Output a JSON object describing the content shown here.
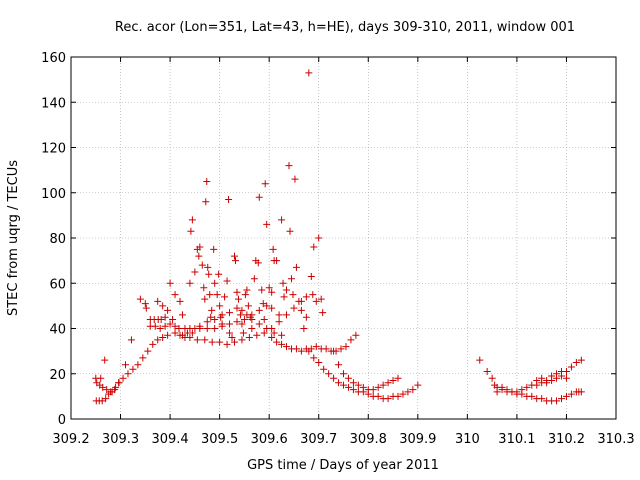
{
  "chart_data": {
    "type": "scatter",
    "title": "Rec. acor (Lon=351, Lat=43, h=HE), days 309-310, 2011, window 001",
    "xlabel": "GPS time / Days of year 2011",
    "ylabel": "STEC from uqrg / TECUs",
    "xlim": [
      309.2,
      310.3
    ],
    "ylim": [
      0,
      160
    ],
    "xticks": [
      309.2,
      309.3,
      309.4,
      309.5,
      309.6,
      309.7,
      309.8,
      309.9,
      310,
      310.1,
      310.2,
      310.3
    ],
    "xtick_labels": [
      "309.2",
      "309.3",
      "309.4",
      "309.5",
      "309.6",
      "309.7",
      "309.8",
      "309.9",
      "310",
      "310.1",
      "310.2",
      "310.3"
    ],
    "yticks": [
      0,
      20,
      40,
      60,
      80,
      100,
      120,
      140,
      160
    ],
    "ytick_labels": [
      "0",
      "20",
      "40",
      "60",
      "80",
      "100",
      "120",
      "140",
      "160"
    ],
    "grid": true,
    "marker": "+",
    "color": "#cc0000",
    "points": [
      [
        309.251,
        8
      ],
      [
        309.257,
        8
      ],
      [
        309.263,
        8
      ],
      [
        309.27,
        9
      ],
      [
        309.276,
        11
      ],
      [
        309.283,
        12
      ],
      [
        309.29,
        14
      ],
      [
        309.297,
        16
      ],
      [
        309.305,
        18
      ],
      [
        309.315,
        20
      ],
      [
        309.325,
        22
      ],
      [
        309.335,
        24
      ],
      [
        309.345,
        27
      ],
      [
        309.355,
        30
      ],
      [
        309.365,
        33
      ],
      [
        309.375,
        35
      ],
      [
        309.385,
        36
      ],
      [
        309.395,
        37
      ],
      [
        309.41,
        38
      ],
      [
        309.425,
        37
      ],
      [
        309.44,
        36
      ],
      [
        309.455,
        35
      ],
      [
        309.47,
        35
      ],
      [
        309.485,
        34
      ],
      [
        309.5,
        34
      ],
      [
        309.515,
        33
      ],
      [
        309.53,
        34
      ],
      [
        309.545,
        35
      ],
      [
        309.56,
        36
      ],
      [
        309.575,
        37
      ],
      [
        309.59,
        38
      ],
      [
        309.605,
        40
      ],
      [
        309.62,
        43
      ],
      [
        309.635,
        46
      ],
      [
        309.65,
        49
      ],
      [
        309.665,
        52
      ],
      [
        309.675,
        54
      ],
      [
        309.252,
        16
      ],
      [
        309.258,
        15
      ],
      [
        309.264,
        14
      ],
      [
        309.272,
        13
      ],
      [
        309.28,
        12
      ],
      [
        309.288,
        13
      ],
      [
        309.296,
        16
      ],
      [
        309.25,
        18
      ],
      [
        309.26,
        18
      ],
      [
        309.268,
        26
      ],
      [
        309.31,
        24
      ],
      [
        309.322,
        35
      ],
      [
        309.34,
        53
      ],
      [
        309.35,
        51
      ],
      [
        309.352,
        49
      ],
      [
        309.36,
        44
      ],
      [
        309.368,
        44
      ],
      [
        309.376,
        44
      ],
      [
        309.382,
        44
      ],
      [
        309.39,
        45
      ],
      [
        309.36,
        41
      ],
      [
        309.37,
        41
      ],
      [
        309.38,
        40
      ],
      [
        309.39,
        41
      ],
      [
        309.4,
        42
      ],
      [
        309.405,
        44
      ],
      [
        309.41,
        41
      ],
      [
        309.418,
        40
      ],
      [
        309.43,
        40
      ],
      [
        309.44,
        40
      ],
      [
        309.45,
        40
      ],
      [
        309.46,
        40
      ],
      [
        309.475,
        40
      ],
      [
        309.49,
        40
      ],
      [
        309.505,
        41
      ],
      [
        309.52,
        42
      ],
      [
        309.535,
        43
      ],
      [
        309.55,
        44
      ],
      [
        309.565,
        46
      ],
      [
        309.58,
        48
      ],
      [
        309.595,
        50
      ],
      [
        309.605,
        49
      ],
      [
        309.375,
        52
      ],
      [
        309.385,
        50
      ],
      [
        309.395,
        48
      ],
      [
        309.4,
        60
      ],
      [
        309.41,
        55
      ],
      [
        309.42,
        52
      ],
      [
        309.425,
        46
      ],
      [
        309.435,
        38
      ],
      [
        309.44,
        60
      ],
      [
        309.45,
        65
      ],
      [
        309.442,
        83
      ],
      [
        309.445,
        88
      ],
      [
        309.455,
        75
      ],
      [
        309.458,
        72
      ],
      [
        309.46,
        76
      ],
      [
        309.465,
        68
      ],
      [
        309.468,
        58
      ],
      [
        309.47,
        53
      ],
      [
        309.472,
        96
      ],
      [
        309.474,
        105
      ],
      [
        309.476,
        67
      ],
      [
        309.478,
        64
      ],
      [
        309.48,
        55
      ],
      [
        309.482,
        45
      ],
      [
        309.484,
        48
      ],
      [
        309.488,
        75
      ],
      [
        309.49,
        60
      ],
      [
        309.495,
        55
      ],
      [
        309.498,
        64
      ],
      [
        309.5,
        50
      ],
      [
        309.502,
        45
      ],
      [
        309.505,
        42
      ],
      [
        309.51,
        54
      ],
      [
        309.515,
        61
      ],
      [
        309.518,
        97
      ],
      [
        309.52,
        38
      ],
      [
        309.525,
        36
      ],
      [
        309.53,
        72
      ],
      [
        309.532,
        70
      ],
      [
        309.535,
        56
      ],
      [
        309.538,
        53
      ],
      [
        309.542,
        46
      ],
      [
        309.545,
        42
      ],
      [
        309.548,
        38
      ],
      [
        309.552,
        55
      ],
      [
        309.555,
        57
      ],
      [
        309.558,
        50
      ],
      [
        309.562,
        45
      ],
      [
        309.565,
        40
      ],
      [
        309.57,
        62
      ],
      [
        309.573,
        70
      ],
      [
        309.578,
        69
      ],
      [
        309.58,
        98
      ],
      [
        309.585,
        57
      ],
      [
        309.588,
        51
      ],
      [
        309.59,
        44
      ],
      [
        309.592,
        104
      ],
      [
        309.595,
        86
      ],
      [
        309.6,
        58
      ],
      [
        309.605,
        56
      ],
      [
        309.608,
        75
      ],
      [
        309.61,
        70
      ],
      [
        309.615,
        70
      ],
      [
        309.62,
        46
      ],
      [
        309.625,
        88
      ],
      [
        309.628,
        60
      ],
      [
        309.63,
        54
      ],
      [
        309.635,
        57
      ],
      [
        309.64,
        112
      ],
      [
        309.642,
        83
      ],
      [
        309.645,
        62
      ],
      [
        309.648,
        55
      ],
      [
        309.652,
        106
      ],
      [
        309.655,
        67
      ],
      [
        309.66,
        52
      ],
      [
        309.665,
        48
      ],
      [
        309.67,
        40
      ],
      [
        309.675,
        45
      ],
      [
        309.68,
        153
      ],
      [
        309.685,
        63
      ],
      [
        309.688,
        55
      ],
      [
        309.69,
        76
      ],
      [
        309.695,
        52
      ],
      [
        309.7,
        80
      ],
      [
        309.705,
        53
      ],
      [
        309.708,
        47
      ],
      [
        309.42,
        37
      ],
      [
        309.43,
        36
      ],
      [
        309.445,
        38
      ],
      [
        309.46,
        41
      ],
      [
        309.475,
        43
      ],
      [
        309.49,
        44
      ],
      [
        309.505,
        46
      ],
      [
        309.52,
        47
      ],
      [
        309.535,
        49
      ],
      [
        309.545,
        48
      ],
      [
        309.555,
        46
      ],
      [
        309.565,
        44
      ],
      [
        309.58,
        42
      ],
      [
        309.595,
        40
      ],
      [
        309.61,
        38
      ],
      [
        309.625,
        37
      ],
      [
        309.605,
        36
      ],
      [
        309.615,
        34
      ],
      [
        309.625,
        33
      ],
      [
        309.635,
        32
      ],
      [
        309.645,
        31
      ],
      [
        309.655,
        31
      ],
      [
        309.665,
        30
      ],
      [
        309.675,
        31
      ],
      [
        309.685,
        31
      ],
      [
        309.695,
        32
      ],
      [
        309.705,
        31
      ],
      [
        309.715,
        31
      ],
      [
        309.725,
        30
      ],
      [
        309.735,
        30
      ],
      [
        309.745,
        31
      ],
      [
        309.755,
        32
      ],
      [
        309.765,
        35
      ],
      [
        309.775,
        37
      ],
      [
        309.68,
        30
      ],
      [
        309.69,
        27
      ],
      [
        309.7,
        25
      ],
      [
        309.71,
        22
      ],
      [
        309.72,
        20
      ],
      [
        309.73,
        18
      ],
      [
        309.74,
        16
      ],
      [
        309.75,
        15
      ],
      [
        309.76,
        14
      ],
      [
        309.77,
        13
      ],
      [
        309.78,
        12
      ],
      [
        309.79,
        12
      ],
      [
        309.8,
        11
      ],
      [
        309.81,
        10
      ],
      [
        309.82,
        10
      ],
      [
        309.83,
        9
      ],
      [
        309.84,
        9
      ],
      [
        309.85,
        10
      ],
      [
        309.86,
        10
      ],
      [
        309.87,
        11
      ],
      [
        309.88,
        12
      ],
      [
        309.89,
        13
      ],
      [
        309.9,
        15
      ],
      [
        309.73,
        30
      ],
      [
        309.74,
        24
      ],
      [
        309.75,
        20
      ],
      [
        309.76,
        18
      ],
      [
        309.77,
        16
      ],
      [
        309.78,
        15
      ],
      [
        309.79,
        14
      ],
      [
        309.8,
        13
      ],
      [
        309.81,
        13
      ],
      [
        309.82,
        14
      ],
      [
        309.83,
        15
      ],
      [
        309.84,
        16
      ],
      [
        309.85,
        17
      ],
      [
        309.86,
        18
      ],
      [
        310.025,
        26
      ],
      [
        310.04,
        21
      ],
      [
        310.05,
        18
      ],
      [
        310.055,
        15
      ],
      [
        310.06,
        14
      ],
      [
        310.07,
        14
      ],
      [
        310.08,
        13
      ],
      [
        310.09,
        12
      ],
      [
        310.1,
        11
      ],
      [
        310.11,
        11
      ],
      [
        310.12,
        10
      ],
      [
        310.13,
        10
      ],
      [
        310.14,
        9
      ],
      [
        310.15,
        9
      ],
      [
        310.16,
        8
      ],
      [
        310.17,
        8
      ],
      [
        310.18,
        8
      ],
      [
        310.19,
        9
      ],
      [
        310.2,
        10
      ],
      [
        310.21,
        11
      ],
      [
        310.22,
        12
      ],
      [
        310.23,
        12
      ],
      [
        310.06,
        12
      ],
      [
        310.07,
        13
      ],
      [
        310.08,
        12
      ],
      [
        310.09,
        12
      ],
      [
        310.1,
        12
      ],
      [
        310.11,
        13
      ],
      [
        310.12,
        14
      ],
      [
        310.13,
        15
      ],
      [
        310.14,
        15
      ],
      [
        310.15,
        16
      ],
      [
        310.16,
        16
      ],
      [
        310.17,
        17
      ],
      [
        310.18,
        18
      ],
      [
        310.19,
        19
      ],
      [
        310.2,
        21
      ],
      [
        310.21,
        23
      ],
      [
        310.22,
        25
      ],
      [
        310.23,
        26
      ],
      [
        310.14,
        17
      ],
      [
        310.15,
        18
      ],
      [
        310.16,
        17
      ],
      [
        310.17,
        19
      ],
      [
        310.18,
        20
      ],
      [
        310.19,
        21
      ],
      [
        310.2,
        18
      ],
      [
        310.225,
        12
      ]
    ]
  }
}
